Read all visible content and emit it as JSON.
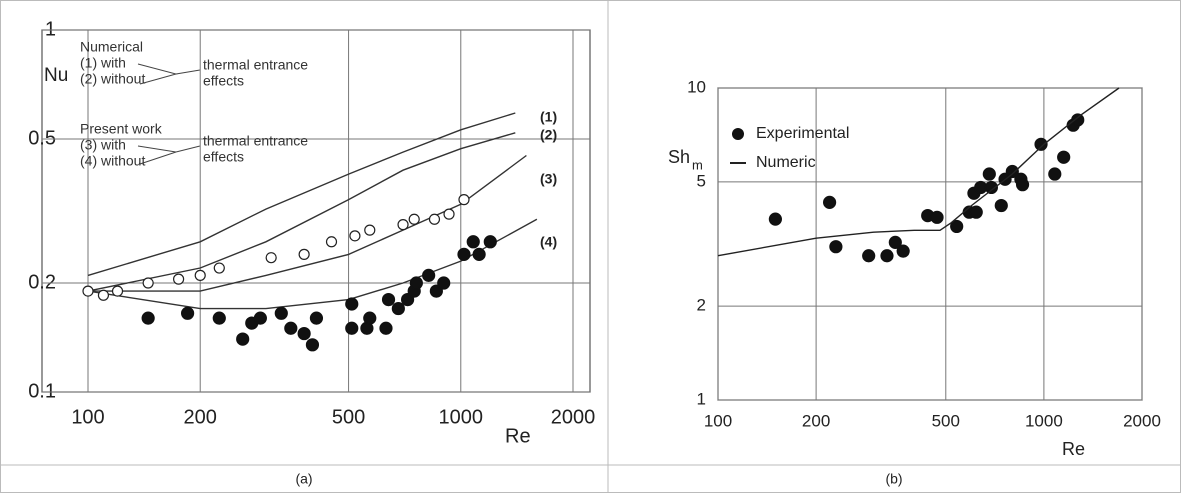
{
  "chart_data": [
    {
      "type": "line",
      "xlabel": "Re",
      "ylabel": "Nu",
      "log_x": true,
      "log_y": true,
      "grid": true,
      "xlim": [
        100,
        2000
      ],
      "ylim": [
        0.1,
        1
      ],
      "xticks": [
        100,
        200,
        500,
        1000,
        2000
      ],
      "yticks": [
        0.1,
        0.2,
        0.5,
        1
      ],
      "annotations": [
        "Numerical",
        "(1) with",
        "(2) without",
        "thermal entrance",
        "effects",
        "Present work",
        "(3) with",
        "(4) without",
        "thermal entrance",
        "effects"
      ],
      "series": [
        {
          "label": "(1)",
          "kind": "line",
          "color": "#333333",
          "x": [
            100,
            200,
            300,
            500,
            700,
            1000,
            1400
          ],
          "values": [
            0.21,
            0.26,
            0.32,
            0.4,
            0.46,
            0.53,
            0.59
          ]
        },
        {
          "label": "(2)",
          "kind": "line",
          "color": "#333333",
          "x": [
            100,
            200,
            300,
            500,
            700,
            1000,
            1400
          ],
          "values": [
            0.19,
            0.22,
            0.26,
            0.34,
            0.41,
            0.47,
            0.52
          ]
        },
        {
          "label": "(3)",
          "kind": "line",
          "color": "#333333",
          "x": [
            100,
            200,
            300,
            500,
            700,
            1000,
            1500
          ],
          "values": [
            0.19,
            0.19,
            0.21,
            0.24,
            0.28,
            0.33,
            0.45
          ]
        },
        {
          "label": "(4)",
          "kind": "line",
          "color": "#333333",
          "x": [
            100,
            200,
            300,
            500,
            700,
            1000,
            1600
          ],
          "values": [
            0.19,
            0.17,
            0.17,
            0.18,
            0.2,
            0.23,
            0.3
          ]
        },
        {
          "kind": "scatter",
          "marker": "open",
          "color": "#222222",
          "x": [
            100,
            110,
            120,
            145,
            175,
            200,
            225,
            310,
            380,
            450,
            520,
            570,
            700,
            750,
            850,
            930,
            1020
          ],
          "values": [
            0.19,
            0.185,
            0.19,
            0.2,
            0.205,
            0.21,
            0.22,
            0.235,
            0.24,
            0.26,
            0.27,
            0.28,
            0.29,
            0.3,
            0.3,
            0.31,
            0.34
          ]
        },
        {
          "kind": "scatter",
          "marker": "filled",
          "color": "#111111",
          "x": [
            145,
            185,
            225,
            260,
            275,
            290,
            330,
            350,
            380,
            400,
            410,
            510,
            510,
            560,
            570,
            630,
            640,
            680,
            720,
            750,
            760,
            820,
            860,
            900,
            1020,
            1080,
            1120,
            1200
          ],
          "values": [
            0.16,
            0.165,
            0.16,
            0.14,
            0.155,
            0.16,
            0.165,
            0.15,
            0.145,
            0.135,
            0.16,
            0.175,
            0.15,
            0.15,
            0.16,
            0.15,
            0.18,
            0.17,
            0.18,
            0.19,
            0.2,
            0.21,
            0.19,
            0.2,
            0.24,
            0.26,
            0.24,
            0.26
          ]
        }
      ]
    },
    {
      "type": "line",
      "xlabel": "Re",
      "ylabel": "Sh",
      "ylabel_sub": "m",
      "log_x": true,
      "log_y": true,
      "grid": true,
      "xlim": [
        100,
        2000
      ],
      "ylim": [
        1,
        10
      ],
      "xticks": [
        100,
        200,
        500,
        1000,
        2000
      ],
      "yticks": [
        1,
        2,
        5,
        10
      ],
      "series": [
        {
          "name": "Experimental",
          "kind": "scatter",
          "marker": "filled",
          "color": "#111111",
          "x": [
            150,
            220,
            230,
            290,
            330,
            350,
            370,
            440,
            470,
            540,
            590,
            610,
            620,
            640,
            680,
            690,
            740,
            760,
            800,
            850,
            860,
            980,
            1080,
            1150,
            1230,
            1270
          ],
          "values": [
            3.8,
            4.3,
            3.1,
            2.9,
            2.9,
            3.2,
            3.0,
            3.9,
            3.85,
            3.6,
            4.0,
            4.6,
            4.0,
            4.8,
            5.3,
            4.8,
            4.2,
            5.1,
            5.4,
            5.1,
            4.9,
            6.6,
            5.3,
            6.0,
            7.6,
            7.9
          ]
        },
        {
          "name": "Numeric",
          "kind": "line",
          "color": "#222222",
          "x": [
            100,
            200,
            300,
            400,
            480,
            520,
            600,
            800,
            1000,
            1300,
            1700
          ],
          "values": [
            2.9,
            3.3,
            3.45,
            3.5,
            3.5,
            3.7,
            4.2,
            5.3,
            6.6,
            8.2,
            10
          ]
        }
      ]
    }
  ],
  "captions": [
    "(a)",
    "(b)"
  ]
}
